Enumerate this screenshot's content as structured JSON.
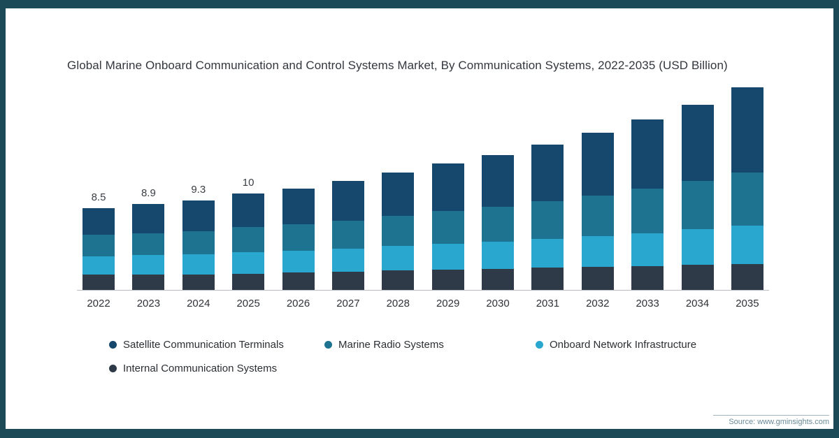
{
  "page": {
    "title": "Global Marine Onboard Communication and Control Systems Market, By Communication Systems, 2022-2035 (USD Billion)",
    "source": "Source: www.gminsights.com"
  },
  "colors": {
    "frame": "#1c4a57",
    "axis": "#b9bdc1",
    "satellite": "#16476c",
    "marine_radio": "#1d7390",
    "onboard_network": "#2aa7cf",
    "internal_comm": "#2e3a47"
  },
  "chart_data": {
    "type": "bar",
    "stacked": true,
    "title": "Global Marine Onboard Communication and Control Systems Market, By Communication Systems, 2022-2035 (USD Billion)",
    "xlabel": "",
    "ylabel": "USD Billion",
    "ylim": [
      0,
      22
    ],
    "grid": false,
    "legend_position": "bottom",
    "categories": [
      "2022",
      "2023",
      "2024",
      "2025",
      "2026",
      "2027",
      "2028",
      "2029",
      "2030",
      "2031",
      "2032",
      "2033",
      "2034",
      "2035"
    ],
    "series": [
      {
        "name": "Satellite Communication Terminals",
        "color": "#16476c",
        "values": [
          2.8,
          3.0,
          3.2,
          3.5,
          3.7,
          4.1,
          4.5,
          4.9,
          5.4,
          5.9,
          6.5,
          7.2,
          7.9,
          8.8
        ]
      },
      {
        "name": "Marine Radio Systems",
        "color": "#1d7390",
        "values": [
          2.2,
          2.3,
          2.4,
          2.6,
          2.7,
          2.9,
          3.1,
          3.4,
          3.6,
          3.9,
          4.2,
          4.6,
          5.0,
          5.5
        ]
      },
      {
        "name": "Onboard Network Infrastructure",
        "color": "#2aa7cf",
        "values": [
          1.9,
          2.0,
          2.1,
          2.2,
          2.3,
          2.4,
          2.6,
          2.7,
          2.8,
          3.0,
          3.2,
          3.4,
          3.7,
          4.0
        ]
      },
      {
        "name": "Internal Communication Systems",
        "color": "#2e3a47",
        "values": [
          1.6,
          1.6,
          1.6,
          1.7,
          1.8,
          1.9,
          2.0,
          2.1,
          2.2,
          2.3,
          2.4,
          2.5,
          2.6,
          2.7
        ]
      }
    ],
    "totals": [
      8.5,
      8.9,
      9.3,
      10,
      10.5,
      11.3,
      12.2,
      13.1,
      14,
      15.1,
      16.3,
      17.7,
      19.2,
      21
    ],
    "totals_labels": [
      "8.5",
      "8.9",
      "9.3",
      "10",
      "",
      "",
      "",
      "",
      "",
      "",
      "",
      "",
      "",
      ""
    ]
  }
}
